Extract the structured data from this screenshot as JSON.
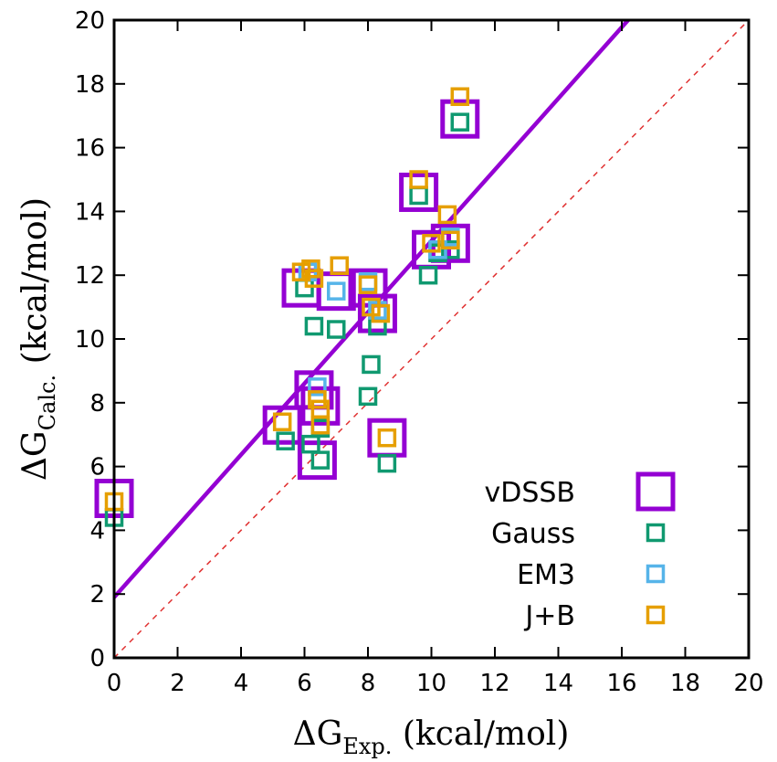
{
  "chart_data": {
    "type": "scatter",
    "title": "",
    "xlabel": {
      "prefix": "ΔG",
      "subscript": "Exp.",
      "unit": " (kcal/mol)"
    },
    "ylabel": {
      "prefix": "ΔG",
      "subscript": "Calc.",
      "unit": " (kcal/mol)"
    },
    "xlim": [
      0,
      20
    ],
    "ylim": [
      0,
      20
    ],
    "xticks": [
      "0",
      "2",
      "4",
      "6",
      "8",
      "10",
      "12",
      "14",
      "16",
      "18",
      "20"
    ],
    "yticks": [
      "0",
      "2",
      "4",
      "6",
      "8",
      "10",
      "12",
      "14",
      "16",
      "18",
      "20"
    ],
    "grid": false,
    "legend_position": "bottom-right",
    "fit_line": {
      "color": "#9400D3",
      "points": [
        [
          0,
          1.9
        ],
        [
          16.2,
          20
        ]
      ]
    },
    "identity_line": {
      "color": "#e03030",
      "style": "dashed",
      "points": [
        [
          0,
          0
        ],
        [
          20,
          20
        ]
      ]
    },
    "series": [
      {
        "name": "vDSSB",
        "color": "#9400D3",
        "marker": "open-square-large",
        "points": [
          [
            0,
            5.0
          ],
          [
            5.3,
            7.3
          ],
          [
            5.9,
            11.6
          ],
          [
            6.3,
            8.4
          ],
          [
            6.5,
            7.9
          ],
          [
            6.4,
            6.2
          ],
          [
            7.0,
            11.5
          ],
          [
            8.0,
            11.6
          ],
          [
            8.3,
            10.8
          ],
          [
            8.6,
            6.9
          ],
          [
            9.6,
            14.6
          ],
          [
            10.0,
            12.8
          ],
          [
            10.6,
            13.0
          ],
          [
            10.9,
            16.9
          ]
        ]
      },
      {
        "name": "Gauss",
        "color": "#109970",
        "marker": "open-square-small",
        "points": [
          [
            0,
            4.4
          ],
          [
            5.4,
            6.8
          ],
          [
            6.0,
            11.6
          ],
          [
            6.3,
            10.4
          ],
          [
            6.2,
            6.7
          ],
          [
            6.5,
            6.2
          ],
          [
            6.5,
            7.2
          ],
          [
            7.0,
            10.3
          ],
          [
            8.0,
            8.2
          ],
          [
            8.1,
            9.2
          ],
          [
            8.3,
            10.4
          ],
          [
            8.6,
            6.1
          ],
          [
            9.6,
            14.5
          ],
          [
            9.9,
            12.0
          ],
          [
            10.2,
            12.7
          ],
          [
            10.6,
            12.8
          ],
          [
            10.9,
            16.8
          ]
        ]
      },
      {
        "name": "EM3",
        "color": "#56B4E9",
        "marker": "open-square-small",
        "points": [
          [
            6.1,
            12.1
          ],
          [
            6.4,
            8.5
          ],
          [
            7.0,
            11.5
          ],
          [
            8.0,
            11.8
          ],
          [
            8.3,
            10.9
          ],
          [
            10.2,
            12.8
          ],
          [
            10.6,
            13.2
          ]
        ]
      },
      {
        "name": "J+B",
        "color": "#E69F00",
        "marker": "open-square-small",
        "points": [
          [
            0,
            4.9
          ],
          [
            5.3,
            7.4
          ],
          [
            5.9,
            12.1
          ],
          [
            6.2,
            12.2
          ],
          [
            6.3,
            11.9
          ],
          [
            6.4,
            8.1
          ],
          [
            6.5,
            7.8
          ],
          [
            6.5,
            7.3
          ],
          [
            7.1,
            12.3
          ],
          [
            8.0,
            11.7
          ],
          [
            8.1,
            11.0
          ],
          [
            8.4,
            10.8
          ],
          [
            8.6,
            6.9
          ],
          [
            9.6,
            15.0
          ],
          [
            10.0,
            13.0
          ],
          [
            10.5,
            13.9
          ],
          [
            10.6,
            13.1
          ],
          [
            10.9,
            17.6
          ]
        ]
      }
    ]
  }
}
